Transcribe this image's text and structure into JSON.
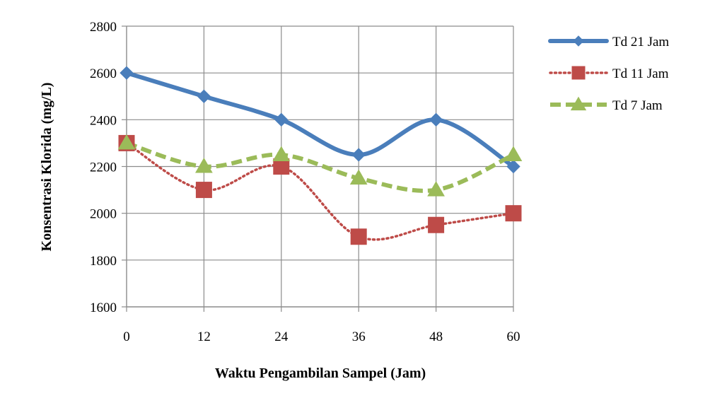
{
  "chart_data": {
    "type": "line",
    "xlabel": "Waktu Pengambilan Sampel (Jam)",
    "ylabel": "Konsentrasi Klorida (mg/L)",
    "x": [
      0,
      12,
      24,
      36,
      48,
      60
    ],
    "xlim": [
      0,
      60
    ],
    "ylim": [
      1600,
      2800
    ],
    "yticks": [
      1600,
      1800,
      2000,
      2200,
      2400,
      2600,
      2800
    ],
    "grid": true,
    "smooth": true,
    "legend": "right",
    "series": [
      {
        "name": "Td 21 Jam",
        "values": [
          2600,
          2500,
          2400,
          2250,
          2400,
          2200
        ],
        "color": "#4a7ebb",
        "marker": "diamond",
        "line": "solid"
      },
      {
        "name": "Td 11 Jam",
        "values": [
          2300,
          2100,
          2200,
          1900,
          1950,
          2000
        ],
        "color": "#be4b48",
        "marker": "square",
        "line": "dotted"
      },
      {
        "name": "Td 7 Jam",
        "values": [
          2300,
          2200,
          2250,
          2150,
          2100,
          2250
        ],
        "color": "#9bbb59",
        "marker": "triangle",
        "line": "dashed"
      }
    ]
  }
}
